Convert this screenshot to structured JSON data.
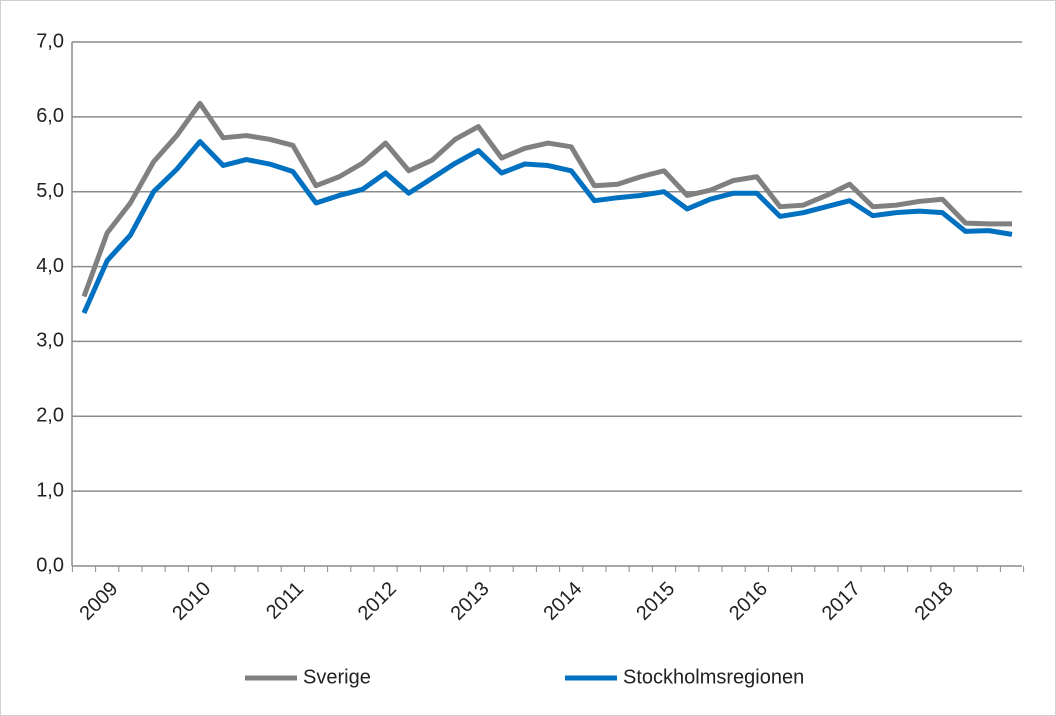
{
  "chart_data": {
    "type": "line",
    "categories": [
      null,
      "2009",
      null,
      null,
      null,
      "2010",
      null,
      null,
      null,
      "2011",
      null,
      null,
      null,
      "2012",
      null,
      null,
      null,
      "2013",
      null,
      null,
      null,
      "2014",
      null,
      null,
      null,
      "2015",
      null,
      null,
      null,
      "2016",
      null,
      null,
      null,
      "2017",
      null,
      null,
      null,
      "2018",
      null,
      null,
      null
    ],
    "series": [
      {
        "name": "Sverige",
        "color": "#808080",
        "values": [
          3.6,
          4.45,
          4.85,
          5.4,
          5.75,
          6.18,
          5.72,
          5.75,
          5.7,
          5.62,
          5.08,
          5.2,
          5.38,
          5.65,
          5.28,
          5.42,
          5.7,
          5.87,
          5.45,
          5.58,
          5.65,
          5.6,
          5.08,
          5.1,
          5.2,
          5.28,
          4.95,
          5.02,
          5.15,
          5.2,
          4.8,
          4.82,
          4.95,
          5.1,
          4.8,
          4.82,
          4.87,
          4.9,
          4.58,
          4.57,
          4.57
        ]
      },
      {
        "name": "Stockholmsregionen",
        "color": "#0070c0",
        "values": [
          3.38,
          4.08,
          4.42,
          5.0,
          5.3,
          5.67,
          5.35,
          5.43,
          5.37,
          5.27,
          4.85,
          4.95,
          5.03,
          5.25,
          4.98,
          5.18,
          5.38,
          5.55,
          5.25,
          5.37,
          5.35,
          5.28,
          4.88,
          4.92,
          4.95,
          5.0,
          4.77,
          4.9,
          4.98,
          4.98,
          4.67,
          4.72,
          4.8,
          4.88,
          4.68,
          4.72,
          4.74,
          4.72,
          4.47,
          4.48,
          4.43
        ]
      }
    ],
    "ylim": [
      0,
      7
    ],
    "yticks": [
      {
        "value": 0,
        "label": "0,0"
      },
      {
        "value": 1,
        "label": "1,0"
      },
      {
        "value": 2,
        "label": "2,0"
      },
      {
        "value": 3,
        "label": "3,0"
      },
      {
        "value": 4,
        "label": "4,0"
      },
      {
        "value": 5,
        "label": "5,0"
      },
      {
        "value": 6,
        "label": "6,0"
      },
      {
        "value": 7,
        "label": "7,0"
      }
    ],
    "grid": true,
    "legend": "bottom"
  }
}
